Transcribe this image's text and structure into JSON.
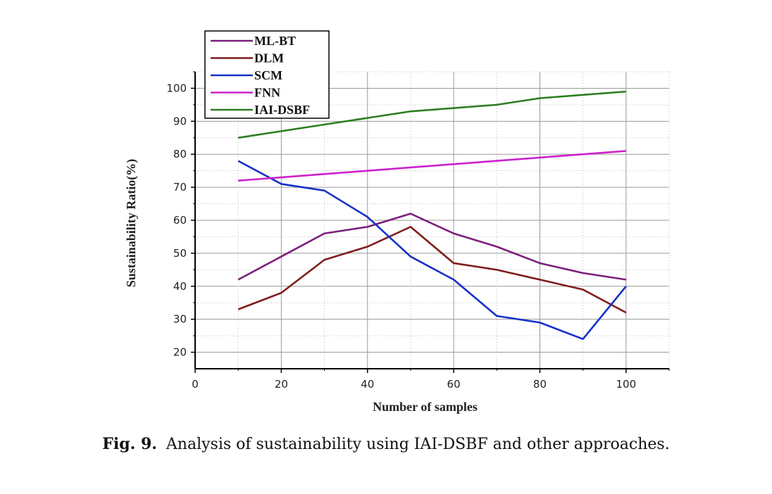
{
  "chart_data": {
    "type": "line",
    "x": [
      10,
      20,
      30,
      40,
      50,
      60,
      70,
      80,
      90,
      100
    ],
    "series": [
      {
        "name": "ML-BT",
        "color": "#7b1f7b",
        "values": [
          42,
          49,
          56,
          58,
          62,
          56,
          52,
          47,
          44,
          42
        ]
      },
      {
        "name": "DLM",
        "color": "#7f1d1d",
        "values": [
          33,
          38,
          48,
          52,
          58,
          47,
          45,
          42,
          39,
          32
        ]
      },
      {
        "name": "SCM",
        "color": "#1530c8",
        "values": [
          78,
          71,
          69,
          61,
          49,
          42,
          31,
          29,
          24,
          40
        ]
      },
      {
        "name": "FNN",
        "color": "#cc22cc",
        "values": [
          72,
          73,
          74,
          75,
          76,
          77,
          78,
          79,
          80,
          81
        ]
      },
      {
        "name": "IAI-DSBF",
        "color": "#2e7d22",
        "values": [
          85,
          87,
          89,
          91,
          93,
          94,
          95,
          97,
          98,
          99
        ]
      }
    ],
    "xlabel": "Number of samples",
    "ylabel": "Sustainability Ratio(%)",
    "xlim": [
      0,
      110
    ],
    "ylim": [
      15,
      105
    ],
    "xticks": [
      "0",
      "20",
      "40",
      "60",
      "80",
      "100"
    ],
    "yticks": [
      "20",
      "30",
      "40",
      "50",
      "60",
      "70",
      "80",
      "90",
      "100"
    ],
    "grid": true,
    "legend_position": "top-left"
  },
  "caption": {
    "label": "Fig. 9.",
    "text": "Analysis of sustainability using IAI-DSBF and other approaches."
  }
}
